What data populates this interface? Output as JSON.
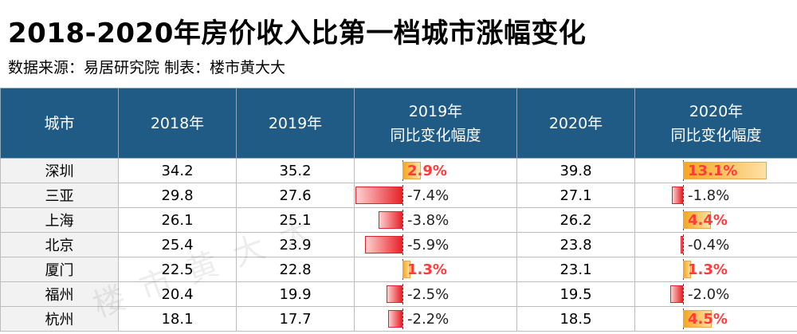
{
  "title": "2018-2020年房价收入比第一档城市涨幅变化",
  "subtitle": "数据来源：易居研究院  制表：楼市黄大大",
  "watermark": "楼市黄大大",
  "colors": {
    "header_bg": "#1f5b84",
    "positive_bar": "#f6a623",
    "negative_bar": "#e8232a",
    "positive_text": "#ff3b3b"
  },
  "headers": {
    "city": "城市",
    "y2018": "2018年",
    "y2019": "2019年",
    "chg2019_line1": "2019年",
    "chg2019_line2": "同比变化幅度",
    "y2020": "2020年",
    "chg2020_line1": "2020年",
    "chg2020_line2": "同比变化幅度"
  },
  "rows": [
    {
      "city": "深圳",
      "y2018": "34.2",
      "y2019": "35.2",
      "chg2019": 2.9,
      "chg2019_text": "2.9%",
      "y2020": "39.8",
      "chg2020": 13.1,
      "chg2020_text": "13.1%"
    },
    {
      "city": "三亚",
      "y2018": "29.8",
      "y2019": "27.6",
      "chg2019": -7.4,
      "chg2019_text": "-7.4%",
      "y2020": "27.1",
      "chg2020": -1.8,
      "chg2020_text": "-1.8%"
    },
    {
      "city": "上海",
      "y2018": "26.1",
      "y2019": "25.1",
      "chg2019": -3.8,
      "chg2019_text": "-3.8%",
      "y2020": "26.2",
      "chg2020": 4.4,
      "chg2020_text": "4.4%"
    },
    {
      "city": "北京",
      "y2018": "25.4",
      "y2019": "23.9",
      "chg2019": -5.9,
      "chg2019_text": "-5.9%",
      "y2020": "23.8",
      "chg2020": -0.4,
      "chg2020_text": "-0.4%"
    },
    {
      "city": "厦门",
      "y2018": "22.5",
      "y2019": "22.8",
      "chg2019": 1.3,
      "chg2019_text": "1.3%",
      "y2020": "23.1",
      "chg2020": 1.3,
      "chg2020_text": "1.3%"
    },
    {
      "city": "福州",
      "y2018": "20.4",
      "y2019": "19.9",
      "chg2019": -2.5,
      "chg2019_text": "-2.5%",
      "y2020": "19.5",
      "chg2020": -2.0,
      "chg2020_text": "-2.0%"
    },
    {
      "city": "杭州",
      "y2018": "18.1",
      "y2019": "17.7",
      "chg2019": -2.2,
      "chg2019_text": "-2.2%",
      "y2020": "18.5",
      "chg2020": 4.5,
      "chg2020_text": "4.5%"
    }
  ]
}
